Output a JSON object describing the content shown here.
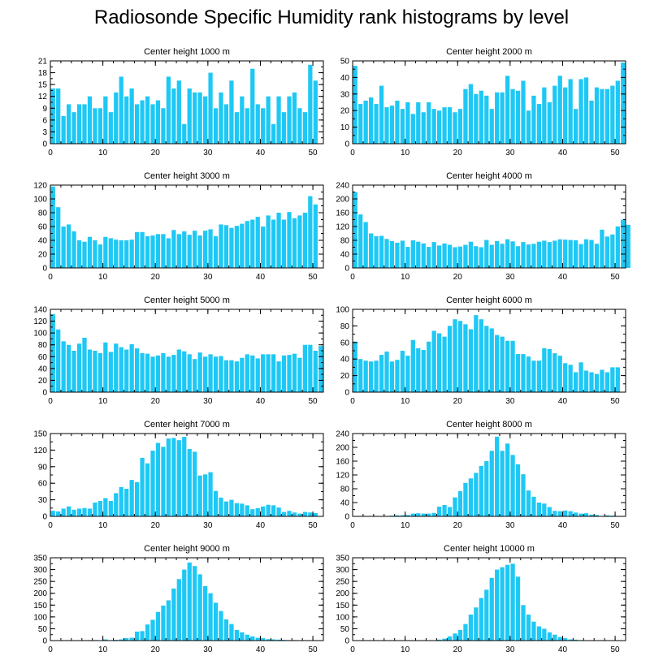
{
  "title": "Radiosonde Specific Humidity rank histograms by level",
  "bar_color": "#1EC8F5",
  "chart_data": [
    {
      "type": "bar",
      "title": "Center height 1000 m",
      "xlim": [
        0,
        52
      ],
      "xticks": [
        0,
        10,
        20,
        30,
        40,
        50
      ],
      "ylim": [
        0,
        21
      ],
      "yticks": [
        0,
        3,
        6,
        9,
        12,
        15,
        18,
        21
      ],
      "values": [
        14,
        14,
        7,
        10,
        8,
        10,
        10,
        12,
        9,
        9,
        12,
        8,
        13,
        17,
        12,
        14,
        10,
        11,
        12,
        10,
        11,
        9,
        17,
        14,
        16,
        5,
        14,
        13,
        13,
        12,
        18,
        9,
        13,
        10,
        16,
        8,
        12,
        9,
        19,
        10,
        9,
        12,
        5,
        12,
        8,
        12,
        13,
        9,
        8,
        20,
        16
      ]
    },
    {
      "type": "bar",
      "title": "Center height 2000 m",
      "xlim": [
        0,
        52
      ],
      "xticks": [
        0,
        10,
        20,
        30,
        40,
        50
      ],
      "ylim": [
        0,
        50
      ],
      "yticks": [
        0,
        10,
        20,
        30,
        40,
        50
      ],
      "values": [
        47,
        24,
        26,
        28,
        24,
        35,
        22,
        23,
        26,
        21,
        25,
        18,
        25,
        19,
        25,
        21,
        20,
        22,
        22,
        19,
        21,
        33,
        36,
        30,
        32,
        29,
        21,
        31,
        31,
        41,
        33,
        32,
        38,
        20,
        29,
        24,
        34,
        25,
        35,
        41,
        34,
        39,
        21,
        39,
        40,
        26,
        34,
        33,
        33,
        35,
        38,
        49
      ]
    },
    {
      "type": "bar",
      "title": "Center height 3000 m",
      "xlim": [
        0,
        52
      ],
      "xticks": [
        0,
        10,
        20,
        30,
        40,
        50
      ],
      "ylim": [
        0,
        120
      ],
      "yticks": [
        0,
        20,
        40,
        60,
        80,
        100,
        120
      ],
      "values": [
        118,
        88,
        60,
        63,
        53,
        40,
        38,
        45,
        40,
        34,
        45,
        43,
        41,
        40,
        40,
        41,
        52,
        52,
        46,
        47,
        49,
        49,
        43,
        55,
        49,
        53,
        48,
        54,
        47,
        54,
        56,
        46,
        63,
        62,
        58,
        61,
        64,
        68,
        70,
        74,
        60,
        76,
        70,
        80,
        70,
        81,
        72,
        76,
        80,
        104,
        92
      ]
    },
    {
      "type": "bar",
      "title": "Center height 4000 m",
      "xlim": [
        0,
        52
      ],
      "xticks": [
        0,
        10,
        20,
        30,
        40,
        50
      ],
      "ylim": [
        0,
        240
      ],
      "yticks": [
        0,
        40,
        80,
        120,
        160,
        200,
        240
      ],
      "values": [
        220,
        155,
        133,
        100,
        92,
        93,
        84,
        78,
        73,
        79,
        61,
        80,
        76,
        71,
        61,
        75,
        65,
        71,
        67,
        60,
        62,
        67,
        76,
        63,
        60,
        81,
        67,
        78,
        70,
        83,
        77,
        63,
        75,
        68,
        70,
        76,
        79,
        75,
        79,
        83,
        82,
        81,
        80,
        69,
        83,
        81,
        70,
        111,
        91,
        97,
        120,
        140,
        125
      ]
    },
    {
      "type": "bar",
      "title": "Center height 5000 m",
      "xlim": [
        0,
        52
      ],
      "xticks": [
        0,
        10,
        20,
        30,
        40,
        50
      ],
      "ylim": [
        0,
        140
      ],
      "yticks": [
        0,
        20,
        40,
        60,
        80,
        100,
        120,
        140
      ],
      "values": [
        132,
        106,
        86,
        80,
        70,
        82,
        92,
        72,
        70,
        66,
        84,
        68,
        82,
        76,
        72,
        81,
        74,
        66,
        65,
        60,
        62,
        66,
        60,
        63,
        72,
        69,
        64,
        56,
        67,
        60,
        64,
        60,
        61,
        54,
        54,
        52,
        58,
        64,
        62,
        57,
        64,
        64,
        64,
        52,
        62,
        63,
        65,
        58,
        80,
        80,
        70,
        78
      ]
    },
    {
      "type": "bar",
      "title": "Center height 6000 m",
      "xlim": [
        0,
        52
      ],
      "xticks": [
        0,
        10,
        20,
        30,
        40,
        50
      ],
      "ylim": [
        0,
        100
      ],
      "yticks": [
        0,
        20,
        40,
        60,
        80,
        100
      ],
      "values": [
        61,
        40,
        38,
        37,
        38,
        45,
        49,
        37,
        39,
        50,
        44,
        63,
        53,
        51,
        61,
        74,
        71,
        67,
        80,
        88,
        86,
        82,
        76,
        93,
        88,
        80,
        77,
        69,
        67,
        62,
        62,
        46,
        46,
        43,
        38,
        38,
        53,
        52,
        47,
        44,
        35,
        33,
        24,
        36,
        26,
        24,
        22,
        27,
        24,
        30,
        30
      ]
    },
    {
      "type": "bar",
      "title": "Center height 7000 m",
      "xlim": [
        0,
        52
      ],
      "xticks": [
        0,
        10,
        20,
        30,
        40,
        50
      ],
      "ylim": [
        0,
        150
      ],
      "yticks": [
        0,
        30,
        60,
        90,
        120,
        150
      ],
      "values": [
        10,
        9,
        14,
        18,
        12,
        14,
        15,
        14,
        25,
        28,
        33,
        28,
        42,
        53,
        50,
        66,
        62,
        106,
        96,
        119,
        133,
        126,
        141,
        142,
        138,
        144,
        122,
        117,
        74,
        76,
        80,
        46,
        34,
        27,
        30,
        24,
        23,
        20,
        13,
        15,
        18,
        21,
        20,
        16,
        8,
        10,
        7,
        5,
        8,
        7,
        6
      ]
    },
    {
      "type": "bar",
      "title": "Center height 8000 m",
      "xlim": [
        0,
        52
      ],
      "xticks": [
        0,
        10,
        20,
        30,
        40,
        50
      ],
      "ylim": [
        0,
        240
      ],
      "yticks": [
        0,
        40,
        80,
        120,
        160,
        200,
        240
      ],
      "values": [
        0,
        0,
        0,
        0,
        1,
        0,
        1,
        2,
        3,
        3,
        4,
        8,
        9,
        8,
        8,
        10,
        28,
        33,
        27,
        55,
        73,
        97,
        110,
        126,
        146,
        160,
        190,
        231,
        190,
        211,
        178,
        151,
        122,
        75,
        57,
        40,
        37,
        27,
        16,
        15,
        17,
        15,
        11,
        8,
        9,
        5,
        4,
        1,
        3,
        2,
        1,
        1
      ]
    },
    {
      "type": "bar",
      "title": "Center height 9000 m",
      "xlim": [
        0,
        52
      ],
      "xticks": [
        0,
        10,
        20,
        30,
        40,
        50
      ],
      "ylim": [
        0,
        350
      ],
      "yticks": [
        0,
        50,
        100,
        150,
        200,
        250,
        300,
        350
      ],
      "values": [
        1,
        0,
        0,
        0,
        0,
        1,
        1,
        2,
        2,
        1,
        5,
        1,
        3,
        5,
        10,
        12,
        38,
        40,
        68,
        88,
        121,
        148,
        170,
        220,
        260,
        300,
        330,
        315,
        280,
        230,
        200,
        160,
        125,
        90,
        70,
        45,
        35,
        25,
        18,
        12,
        10,
        6,
        5,
        4,
        3,
        2,
        2,
        1,
        1,
        0,
        0
      ]
    },
    {
      "type": "bar",
      "title": "Center height 10000 m",
      "xlim": [
        0,
        52
      ],
      "xticks": [
        0,
        10,
        20,
        30,
        40,
        50
      ],
      "ylim": [
        0,
        350
      ],
      "yticks": [
        0,
        50,
        100,
        150,
        200,
        250,
        300,
        350
      ],
      "values": [
        0,
        0,
        0,
        0,
        0,
        0,
        0,
        0,
        0,
        0,
        0,
        0,
        0,
        0,
        0,
        1,
        4,
        8,
        18,
        30,
        45,
        70,
        110,
        140,
        180,
        215,
        265,
        300,
        310,
        320,
        325,
        270,
        150,
        110,
        80,
        60,
        50,
        35,
        25,
        15,
        10,
        5,
        4,
        2,
        1,
        1,
        0,
        0,
        0,
        0,
        0
      ]
    }
  ]
}
